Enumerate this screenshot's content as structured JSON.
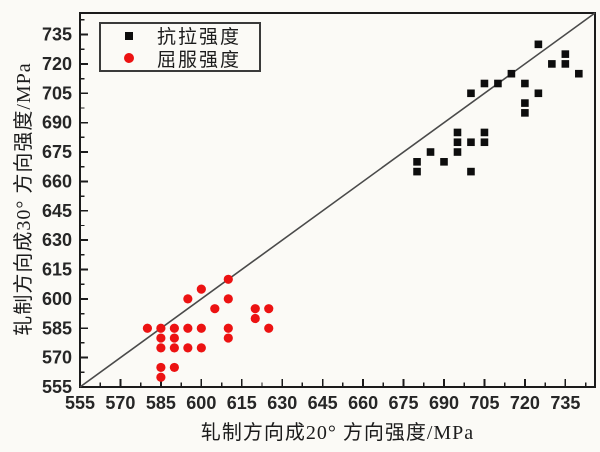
{
  "page": {
    "background": "#fbfaf6"
  },
  "colors": {
    "axis": "#1b1b1b",
    "tick_label": "#262626",
    "reference_line": "#4a4a4a",
    "legend_border": "#3a3a3a",
    "tensile_black": "#0d0d0d",
    "yield_red": "#ec1212"
  },
  "chart_data": {
    "type": "scatter",
    "title": "",
    "xlabel": "轧制方向成20° 方向强度/MPa",
    "ylabel": "轧制方向成30° 方向强度/MPa",
    "xlim": [
      555,
      746
    ],
    "ylim": [
      555,
      746
    ],
    "xticks": [
      555,
      570,
      585,
      600,
      615,
      630,
      645,
      660,
      675,
      690,
      705,
      720,
      735
    ],
    "yticks": [
      555,
      570,
      585,
      600,
      615,
      630,
      645,
      660,
      675,
      690,
      705,
      720,
      735
    ],
    "minor_tick_step": 7.5,
    "grid": false,
    "legend_position": "top-left-inside",
    "reference_line": {
      "type": "y=x diagonal",
      "x1": 555,
      "y1": 555,
      "x2": 746,
      "y2": 746
    },
    "series": [
      {
        "name": "抗拉强度",
        "marker": "square",
        "color": "#0d0d0d",
        "points": [
          [
            725,
            730
          ],
          [
            735,
            725
          ],
          [
            730,
            720
          ],
          [
            735,
            720
          ],
          [
            740,
            715
          ],
          [
            715,
            715
          ],
          [
            710,
            710
          ],
          [
            705,
            710
          ],
          [
            720,
            710
          ],
          [
            700,
            705
          ],
          [
            725,
            705
          ],
          [
            720,
            700
          ],
          [
            720,
            695
          ],
          [
            695,
            685
          ],
          [
            705,
            685
          ],
          [
            695,
            680
          ],
          [
            700,
            680
          ],
          [
            705,
            680
          ],
          [
            685,
            675
          ],
          [
            695,
            675
          ],
          [
            680,
            670
          ],
          [
            690,
            670
          ],
          [
            680,
            665
          ],
          [
            700,
            665
          ]
        ]
      },
      {
        "name": "屈服强度",
        "marker": "circle",
        "color": "#ec1212",
        "points": [
          [
            610,
            610
          ],
          [
            600,
            605
          ],
          [
            595,
            600
          ],
          [
            610,
            600
          ],
          [
            605,
            595
          ],
          [
            620,
            595
          ],
          [
            625,
            595
          ],
          [
            620,
            590
          ],
          [
            625,
            585
          ],
          [
            580,
            585
          ],
          [
            585,
            585
          ],
          [
            590,
            585
          ],
          [
            595,
            585
          ],
          [
            600,
            585
          ],
          [
            610,
            585
          ],
          [
            585,
            580
          ],
          [
            590,
            580
          ],
          [
            610,
            580
          ],
          [
            585,
            575
          ],
          [
            590,
            575
          ],
          [
            595,
            575
          ],
          [
            600,
            575
          ],
          [
            585,
            565
          ],
          [
            590,
            565
          ],
          [
            585,
            560
          ]
        ]
      }
    ]
  }
}
